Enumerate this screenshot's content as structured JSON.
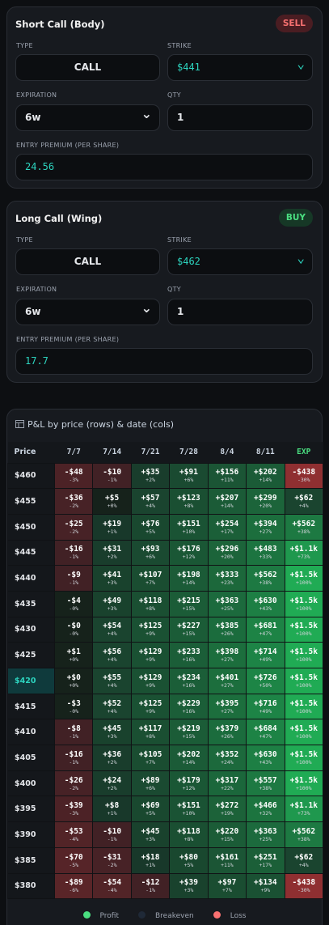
{
  "legs": [
    {
      "title": "Short Call (Body)",
      "badge": "SELL",
      "type_label": "TYPE",
      "type": "CALL",
      "strike_label": "STRIKE",
      "strike": "$441",
      "expiration_label": "EXPIRATION",
      "expiration": "6w",
      "qty_label": "QTY",
      "qty": "1",
      "premium_label": "ENTRY PREMIUM (PER SHARE)",
      "premium": "24.56"
    },
    {
      "title": "Long Call (Wing)",
      "badge": "BUY",
      "type_label": "TYPE",
      "type": "CALL",
      "strike_label": "STRIKE",
      "strike": "$462",
      "expiration_label": "EXPIRATION",
      "expiration": "6w",
      "qty_label": "QTY",
      "qty": "1",
      "premium_label": "ENTRY PREMIUM (PER SHARE)",
      "premium": "17.7"
    }
  ],
  "pnl": {
    "title": "P&L by price (rows) & date (cols)",
    "headers": [
      "Price",
      "7/7",
      "7/14",
      "7/21",
      "7/28",
      "8/4",
      "8/11",
      "EXP"
    ],
    "rows": [
      {
        "price": "$460",
        "cells": [
          [
            "-$48",
            "-3%"
          ],
          [
            "-$10",
            "-1%"
          ],
          [
            "+$35",
            "+2%"
          ],
          [
            "+$91",
            "+6%"
          ],
          [
            "+$156",
            "+11%"
          ],
          [
            "+$202",
            "+14%"
          ],
          [
            "-$438",
            "-30%"
          ]
        ]
      },
      {
        "price": "$455",
        "cells": [
          [
            "-$36",
            "-2%"
          ],
          [
            "+$5",
            "+0%"
          ],
          [
            "+$57",
            "+4%"
          ],
          [
            "+$123",
            "+8%"
          ],
          [
            "+$207",
            "+14%"
          ],
          [
            "+$299",
            "+20%"
          ],
          [
            "+$62",
            "+4%"
          ]
        ]
      },
      {
        "price": "$450",
        "cells": [
          [
            "-$25",
            "-2%"
          ],
          [
            "+$19",
            "+1%"
          ],
          [
            "+$76",
            "+5%"
          ],
          [
            "+$151",
            "+10%"
          ],
          [
            "+$254",
            "+17%"
          ],
          [
            "+$394",
            "+27%"
          ],
          [
            "+$562",
            "+38%"
          ]
        ]
      },
      {
        "price": "$445",
        "cells": [
          [
            "-$16",
            "-1%"
          ],
          [
            "+$31",
            "+2%"
          ],
          [
            "+$93",
            "+6%"
          ],
          [
            "+$176",
            "+12%"
          ],
          [
            "+$296",
            "+20%"
          ],
          [
            "+$483",
            "+33%"
          ],
          [
            "+$1.1k",
            "+73%"
          ]
        ]
      },
      {
        "price": "$440",
        "cells": [
          [
            "-$9",
            "-1%"
          ],
          [
            "+$41",
            "+3%"
          ],
          [
            "+$107",
            "+7%"
          ],
          [
            "+$198",
            "+14%"
          ],
          [
            "+$333",
            "+23%"
          ],
          [
            "+$562",
            "+38%"
          ],
          [
            "+$1.5k",
            "+100%"
          ]
        ]
      },
      {
        "price": "$435",
        "cells": [
          [
            "-$4",
            "-0%"
          ],
          [
            "+$49",
            "+3%"
          ],
          [
            "+$118",
            "+8%"
          ],
          [
            "+$215",
            "+15%"
          ],
          [
            "+$363",
            "+25%"
          ],
          [
            "+$630",
            "+43%"
          ],
          [
            "+$1.5k",
            "+100%"
          ]
        ]
      },
      {
        "price": "$430",
        "cells": [
          [
            "-$0",
            "-0%"
          ],
          [
            "+$54",
            "+4%"
          ],
          [
            "+$125",
            "+9%"
          ],
          [
            "+$227",
            "+15%"
          ],
          [
            "+$385",
            "+26%"
          ],
          [
            "+$681",
            "+47%"
          ],
          [
            "+$1.5k",
            "+100%"
          ]
        ]
      },
      {
        "price": "$425",
        "cells": [
          [
            "+$1",
            "+0%"
          ],
          [
            "+$56",
            "+4%"
          ],
          [
            "+$129",
            "+9%"
          ],
          [
            "+$233",
            "+16%"
          ],
          [
            "+$398",
            "+27%"
          ],
          [
            "+$714",
            "+49%"
          ],
          [
            "+$1.5k",
            "+100%"
          ]
        ]
      },
      {
        "price": "$420",
        "cells": [
          [
            "+$0",
            "+0%"
          ],
          [
            "+$55",
            "+4%"
          ],
          [
            "+$129",
            "+9%"
          ],
          [
            "+$234",
            "+16%"
          ],
          [
            "+$401",
            "+27%"
          ],
          [
            "+$726",
            "+50%"
          ],
          [
            "+$1.5k",
            "+100%"
          ]
        ]
      },
      {
        "price": "$415",
        "cells": [
          [
            "-$3",
            "-0%"
          ],
          [
            "+$52",
            "+4%"
          ],
          [
            "+$125",
            "+9%"
          ],
          [
            "+$229",
            "+16%"
          ],
          [
            "+$395",
            "+27%"
          ],
          [
            "+$716",
            "+49%"
          ],
          [
            "+$1.5k",
            "+100%"
          ]
        ]
      },
      {
        "price": "$410",
        "cells": [
          [
            "-$8",
            "-1%"
          ],
          [
            "+$45",
            "+3%"
          ],
          [
            "+$117",
            "+8%"
          ],
          [
            "+$219",
            "+15%"
          ],
          [
            "+$379",
            "+26%"
          ],
          [
            "+$684",
            "+47%"
          ],
          [
            "+$1.5k",
            "+100%"
          ]
        ]
      },
      {
        "price": "$405",
        "cells": [
          [
            "-$16",
            "-1%"
          ],
          [
            "+$36",
            "+2%"
          ],
          [
            "+$105",
            "+7%"
          ],
          [
            "+$202",
            "+14%"
          ],
          [
            "+$352",
            "+24%"
          ],
          [
            "+$630",
            "+43%"
          ],
          [
            "+$1.5k",
            "+100%"
          ]
        ]
      },
      {
        "price": "$400",
        "cells": [
          [
            "-$26",
            "-2%"
          ],
          [
            "+$24",
            "+2%"
          ],
          [
            "+$89",
            "+6%"
          ],
          [
            "+$179",
            "+12%"
          ],
          [
            "+$317",
            "+22%"
          ],
          [
            "+$557",
            "+38%"
          ],
          [
            "+$1.5k",
            "+100%"
          ]
        ]
      },
      {
        "price": "$395",
        "cells": [
          [
            "-$39",
            "-3%"
          ],
          [
            "+$8",
            "+1%"
          ],
          [
            "+$69",
            "+5%"
          ],
          [
            "+$151",
            "+10%"
          ],
          [
            "+$272",
            "+19%"
          ],
          [
            "+$466",
            "+32%"
          ],
          [
            "+$1.1k",
            "+73%"
          ]
        ]
      },
      {
        "price": "$390",
        "cells": [
          [
            "-$53",
            "-4%"
          ],
          [
            "-$10",
            "-1%"
          ],
          [
            "+$45",
            "+3%"
          ],
          [
            "+$118",
            "+8%"
          ],
          [
            "+$220",
            "+15%"
          ],
          [
            "+$363",
            "+25%"
          ],
          [
            "+$562",
            "+38%"
          ]
        ]
      },
      {
        "price": "$385",
        "cells": [
          [
            "-$70",
            "-5%"
          ],
          [
            "-$31",
            "-2%"
          ],
          [
            "+$18",
            "+1%"
          ],
          [
            "+$80",
            "+5%"
          ],
          [
            "+$161",
            "+11%"
          ],
          [
            "+$251",
            "+17%"
          ],
          [
            "+$62",
            "+4%"
          ]
        ]
      },
      {
        "price": "$380",
        "cells": [
          [
            "-$89",
            "-6%"
          ],
          [
            "-$54",
            "-4%"
          ],
          [
            "-$12",
            "-1%"
          ],
          [
            "+$39",
            "+3%"
          ],
          [
            "+$97",
            "+7%"
          ],
          [
            "+$134",
            "+9%"
          ],
          [
            "-$438",
            "-30%"
          ]
        ]
      }
    ],
    "legend": [
      "Profit",
      "Breakeven",
      "Loss"
    ]
  }
}
